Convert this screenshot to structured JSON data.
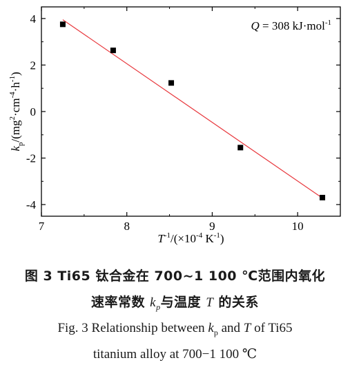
{
  "chart_data": {
    "type": "scatter",
    "xlim": [
      7,
      10.5
    ],
    "ylim": [
      -4.5,
      4.5
    ],
    "x_ticks": [
      7,
      8,
      9,
      10
    ],
    "y_ticks": [
      4,
      2,
      0,
      -2,
      -4
    ],
    "x_tick_labels": [
      "7",
      "8",
      "9",
      "10"
    ],
    "y_tick_labels": [
      "4",
      "2",
      "0",
      "-2",
      "-4"
    ],
    "series": [
      {
        "marker": "square",
        "color": "#000000",
        "points": [
          {
            "x": 7.25,
            "y": 3.75
          },
          {
            "x": 7.84,
            "y": 2.63
          },
          {
            "x": 8.52,
            "y": 1.23
          },
          {
            "x": 9.33,
            "y": -1.55
          },
          {
            "x": 10.29,
            "y": -3.7
          }
        ]
      }
    ],
    "fit_line": {
      "color": "#e8383d",
      "from": {
        "x": 7.25,
        "y": 3.95
      },
      "to": {
        "x": 10.29,
        "y": -3.72
      }
    },
    "grid": false,
    "annotation": {
      "Q_symbol": "Q",
      "text": " = 308 kJ·mol",
      "sup": "-1"
    },
    "xlabel": {
      "base": "T",
      "sup": "-1",
      "rest": "/(×10",
      "sup2": "-4",
      "unit": " K",
      "sup3": "-1",
      "close": ")"
    },
    "ylabel": {
      "k": "k",
      "sub": "p",
      "rest": "/(mg",
      "sup1": "2",
      "mid": "·cm",
      "sup2": "-4",
      "mid2": "·h",
      "sup3": "-1",
      "close": ")"
    }
  },
  "caption": {
    "cn_line1": "图 3   Ti65 钛合金在 700~1 100 ℃范围内氧化",
    "cn_line2_pre": "速率常数 ",
    "cn_line2_k": "k",
    "cn_line2_p": "p",
    "cn_line2_mid": "与温度 ",
    "cn_line2_T": "T",
    "cn_line2_post": " 的关系",
    "en_line1_pre": "Fig. 3    Relationship between ",
    "en_line1_k": "k",
    "en_line1_p": "p",
    "en_line1_mid": " and ",
    "en_line1_T": "T",
    "en_line1_post": " of Ti65",
    "en_line2": "titanium alloy at 700−1 100 ℃"
  }
}
